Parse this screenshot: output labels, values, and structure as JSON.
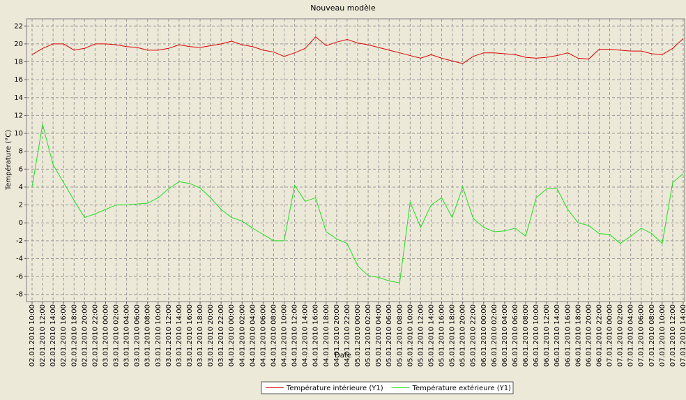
{
  "chart_data": {
    "type": "line",
    "title": "Nouveau modèle",
    "x_label": "Date",
    "y_label": "Température (°C)",
    "categories": [
      "02.01.2010 10:00",
      "02.01.2010 12:00",
      "02.01.2010 14:00",
      "02.01.2010 16:00",
      "02.01.2010 18:00",
      "02.01.2010 20:00",
      "02.01.2010 22:00",
      "03.01.2010 00:00",
      "03.01.2010 02:00",
      "03.01.2010 04:00",
      "03.01.2010 06:00",
      "03.01.2010 08:00",
      "03.01.2010 10:00",
      "03.01.2010 12:00",
      "03.01.2010 14:00",
      "03.01.2010 16:00",
      "03.01.2010 18:00",
      "03.01.2010 20:00",
      "03.01.2010 22:00",
      "04.01.2010 00:00",
      "04.01.2010 02:00",
      "04.01.2010 04:00",
      "04.01.2010 06:00",
      "04.01.2010 08:00",
      "04.01.2010 10:00",
      "04.01.2010 12:00",
      "04.01.2010 14:00",
      "04.01.2010 16:00",
      "04.01.2010 18:00",
      "04.01.2010 20:00",
      "04.01.2010 22:00",
      "05.01.2010 00:00",
      "05.01.2010 02:00",
      "05.01.2010 04:00",
      "05.01.2010 06:00",
      "05.01.2010 08:00",
      "05.01.2010 10:00",
      "05.01.2010 12:00",
      "05.01.2010 14:00",
      "05.01.2010 16:00",
      "05.01.2010 18:00",
      "05.01.2010 20:00",
      "05.01.2010 22:00",
      "06.01.2010 00:00",
      "06.01.2010 02:00",
      "06.01.2010 04:00",
      "06.01.2010 06:00",
      "06.01.2010 08:00",
      "06.01.2010 10:00",
      "06.01.2010 12:00",
      "06.01.2010 14:00",
      "06.01.2010 16:00",
      "06.01.2010 18:00",
      "06.01.2010 20:00",
      "06.01.2010 22:00",
      "07.01.2010 00:00",
      "07.01.2010 02:00",
      "07.01.2010 04:00",
      "07.01.2010 06:00",
      "07.01.2010 08:00",
      "07.01.2010 10:00",
      "07.01.2010 12:00",
      "07.01.2010 14:00"
    ],
    "series": [
      {
        "name": "Température intérieure (Y1)",
        "color": "#dd0000",
        "values": [
          18.8,
          19.5,
          20.0,
          20.0,
          19.3,
          19.5,
          20.0,
          20.0,
          19.9,
          19.7,
          19.6,
          19.3,
          19.3,
          19.5,
          19.9,
          19.7,
          19.6,
          19.8,
          20.0,
          20.3,
          19.9,
          19.7,
          19.3,
          19.1,
          18.6,
          19.0,
          19.5,
          20.8,
          19.8,
          20.2,
          20.5,
          20.1,
          19.9,
          19.6,
          19.3,
          19.0,
          18.7,
          18.4,
          18.8,
          18.4,
          18.1,
          17.8,
          18.6,
          19.0,
          19.0,
          18.9,
          18.8,
          18.5,
          18.4,
          18.5,
          18.7,
          19.0,
          18.4,
          18.3,
          19.4,
          19.4,
          19.3,
          19.2,
          19.2,
          18.9,
          18.8,
          19.5,
          20.6
        ]
      },
      {
        "name": "Température extérieure (Y1)",
        "color": "#22dd22",
        "values": [
          4.0,
          11.0,
          6.5,
          4.5,
          2.5,
          0.6,
          1.0,
          1.5,
          2.0,
          2.0,
          2.1,
          2.2,
          2.8,
          3.8,
          4.6,
          4.4,
          3.9,
          2.8,
          1.5,
          0.6,
          0.2,
          -0.6,
          -1.3,
          -2.0,
          -2.0,
          4.2,
          2.4,
          2.8,
          -1.0,
          -1.8,
          -2.3,
          -4.8,
          -5.9,
          -6.1,
          -6.5,
          -6.7,
          2.3,
          -0.5,
          2.0,
          2.8,
          0.6,
          4.0,
          0.5,
          -0.5,
          -1.0,
          -0.9,
          -0.6,
          -1.5,
          2.8,
          3.8,
          3.8,
          1.5,
          0.0,
          -0.3,
          -1.2,
          -1.3,
          -2.3,
          -1.5,
          -0.6,
          -1.2,
          -2.3,
          4.5,
          5.5
        ]
      }
    ],
    "ylim": [
      -8.8,
      22.8
    ],
    "yticks": [
      -8,
      -6,
      -4,
      -2,
      0,
      2,
      4,
      6,
      8,
      10,
      12,
      14,
      16,
      18,
      20,
      22
    ],
    "grid": true,
    "legend": "bottom"
  }
}
